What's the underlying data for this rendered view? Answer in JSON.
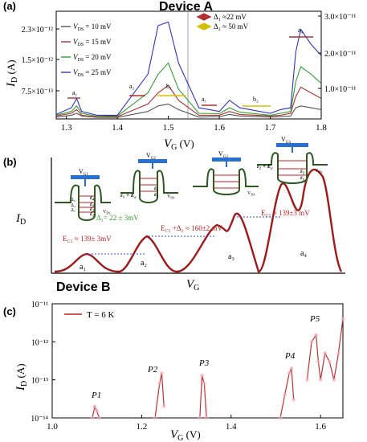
{
  "panel_a": {
    "label": "(a)",
    "device": "Device A",
    "left_ticks": [
      "2.3×10⁻¹²",
      "1.5×10⁻¹²",
      "7.5×10⁻¹³"
    ],
    "right_ticks": [
      "3.0×10⁻¹¹",
      "2.0×10⁻¹¹",
      "1.0×10⁻¹¹"
    ],
    "x_ticks": [
      "1.3",
      "1.4",
      "1.5",
      "1.6",
      "1.7",
      "1.8"
    ],
    "xlabel_main": "V",
    "xlabel_sub": "G",
    "xlabel_unit": " (V)",
    "ylabel_main": "I",
    "ylabel_sub": "D",
    "ylabel_unit": " (A)",
    "legend": [
      {
        "main": "V",
        "sub": "DS",
        "value": " = 10 mV",
        "color": "#555555"
      },
      {
        "main": "V",
        "sub": "DS",
        "value": " = 15 mV",
        "color": "#b03030"
      },
      {
        "main": "V",
        "sub": "DS",
        "value": " = 20 mV",
        "color": "#30a030"
      },
      {
        "main": "V",
        "sub": "DS",
        "value": " = 25 mV",
        "color": "#3030c8"
      }
    ],
    "delta_legend": [
      {
        "text": "Δ₁ ≈22 mV",
        "color": "#b03030"
      },
      {
        "text": "Δ₂ ≈ 50 mV",
        "color": "#d4c000"
      }
    ],
    "peak_labels": {
      "a1_left": "a₁",
      "a2": "a₂",
      "b1": "b₁",
      "a1_right": "a₁",
      "b2": "b₂",
      "a4": "a₄"
    }
  },
  "panel_b": {
    "label": "(b)",
    "ylabel_main": "I",
    "ylabel_sub": "D",
    "xlabel_main": "V",
    "xlabel_sub": "G",
    "gates": [
      "V",
      "V",
      "V",
      "V"
    ],
    "gate_subs": [
      "G1",
      "G2",
      "G3",
      "G4"
    ],
    "vds": "V",
    "vds_sub": "DS",
    "delta1": "Δ₁= 22 ± 3mV",
    "ec1_left": "E",
    "ec1_left_sub": "C1",
    "ec1_left_val": " ≈ 139± 3mV",
    "ec1_mid": "E",
    "ec1_mid_sub": "C1",
    "ec1_mid_val": " +Δ₂ ≈ 160±2 mV",
    "ec1_right": "E",
    "ec1_right_sub": "C1",
    "ec1_right_val": " ≈ 139±3 mV",
    "peaks": [
      "a₁",
      "a₂",
      "a₃",
      "a₄"
    ],
    "levels": [
      "ε₄",
      "ε₃",
      "ε₂",
      "ε₁"
    ],
    "deltas": [
      "Δ₃",
      "Δ₂",
      "Δ₁"
    ],
    "eps1_ec": "ε₁ + E",
    "eps1_ec_sub": "c",
    "eps2_ec": "ε₂ + E",
    "eps2_ec_sub": "c"
  },
  "panel_c": {
    "label": "(c)",
    "device": "Device B",
    "legend": "T = 6 K",
    "y_ticks": [
      "10⁻¹¹",
      "10⁻¹²",
      "10⁻¹³",
      "10⁻¹⁴"
    ],
    "x_ticks": [
      "1.0",
      "1.2",
      "1.4",
      "1.6"
    ],
    "xlabel_main": "V",
    "xlabel_sub": "G",
    "xlabel_unit": " (V)",
    "ylabel_main": "I",
    "ylabel_sub": "D",
    "ylabel_unit": " (A)",
    "peaks": [
      "P1",
      "P2",
      "P3",
      "P4",
      "P5"
    ]
  },
  "chart_data": [
    {
      "type": "line",
      "xlabel": "V_G (V)",
      "ylabel": "I_D (A)",
      "xlim": [
        1.28,
        1.8
      ],
      "series": [
        {
          "name": "V_DS = 10 mV",
          "x": [
            1.28,
            1.31,
            1.32,
            1.33,
            1.36,
            1.4,
            1.46,
            1.48,
            1.5,
            1.52,
            1.56,
            1.6,
            1.62,
            1.64,
            1.7,
            1.72,
            1.74,
            1.75,
            1.76,
            1.78,
            1.8
          ],
          "y": [
            0.05,
            0.1,
            0.15,
            0.08,
            0.04,
            0.04,
            0.2,
            0.35,
            0.4,
            0.25,
            0.05,
            0.06,
            0.12,
            0.08,
            0.05,
            0.06,
            0.08,
            0.3,
            0.35,
            0.3,
            0.25
          ]
        },
        {
          "name": "V_DS = 15 mV",
          "x": [
            1.28,
            1.31,
            1.32,
            1.33,
            1.36,
            1.4,
            1.46,
            1.48,
            1.5,
            1.52,
            1.56,
            1.6,
            1.62,
            1.64,
            1.7,
            1.72,
            1.74,
            1.75,
            1.76,
            1.78,
            1.8
          ],
          "y": [
            0.08,
            0.15,
            0.25,
            0.1,
            0.05,
            0.06,
            0.4,
            0.7,
            0.9,
            0.5,
            0.1,
            0.1,
            0.2,
            0.12,
            0.08,
            0.1,
            0.15,
            0.6,
            0.85,
            0.7,
            0.55
          ]
        },
        {
          "name": "V_DS = 20 mV",
          "x": [
            1.28,
            1.31,
            1.32,
            1.33,
            1.36,
            1.4,
            1.46,
            1.48,
            1.5,
            1.52,
            1.56,
            1.6,
            1.62,
            1.64,
            1.7,
            1.72,
            1.74,
            1.75,
            1.76,
            1.78,
            1.8
          ],
          "y": [
            0.1,
            0.2,
            0.35,
            0.15,
            0.07,
            0.08,
            0.7,
            1.2,
            1.5,
            0.8,
            0.15,
            0.14,
            0.3,
            0.18,
            0.1,
            0.15,
            0.2,
            1.0,
            1.4,
            1.2,
            0.95
          ]
        },
        {
          "name": "V_DS = 25 mV",
          "x": [
            1.28,
            1.31,
            1.32,
            1.33,
            1.36,
            1.4,
            1.46,
            1.48,
            1.5,
            1.52,
            1.56,
            1.6,
            1.62,
            1.64,
            1.7,
            1.72,
            1.74,
            1.75,
            1.76,
            1.78,
            1.8
          ],
          "y": [
            0.12,
            0.3,
            0.55,
            0.2,
            0.1,
            0.1,
            1.2,
            2.5,
            2.6,
            1.5,
            0.3,
            0.2,
            0.5,
            0.3,
            0.15,
            0.25,
            0.3,
            1.8,
            2.4,
            2.0,
            1.7
          ]
        }
      ]
    },
    {
      "type": "line",
      "xlabel": "V_G (V)",
      "ylabel": "I_D (A)",
      "xlim": [
        1.0,
        1.65
      ],
      "ylim": [
        1e-14,
        1e-11
      ],
      "log_y": true,
      "series": [
        {
          "name": "T = 6 K",
          "x": [
            1.09,
            1.095,
            1.1,
            1.105,
            1.23,
            1.24,
            1.245,
            1.25,
            1.33,
            1.335,
            1.34,
            1.345,
            1.51,
            1.52,
            1.53,
            1.535,
            1.54,
            1.57,
            1.58,
            1.59,
            1.595,
            1.6,
            1.61,
            1.62,
            1.63,
            1.64,
            1.65
          ],
          "y": [
            1e-14,
            2e-14,
            1.5e-14,
            1e-14,
            1e-14,
            8e-14,
            1.5e-13,
            2e-14,
            1e-14,
            1.3e-13,
            8e-14,
            1e-14,
            1e-14,
            4e-14,
            1.5e-13,
            2e-13,
            3e-14,
            1e-13,
            1e-12,
            1.5e-12,
            3e-13,
            1e-13,
            5e-13,
            3e-13,
            1e-13,
            5e-13,
            4e-12
          ]
        }
      ]
    }
  ]
}
